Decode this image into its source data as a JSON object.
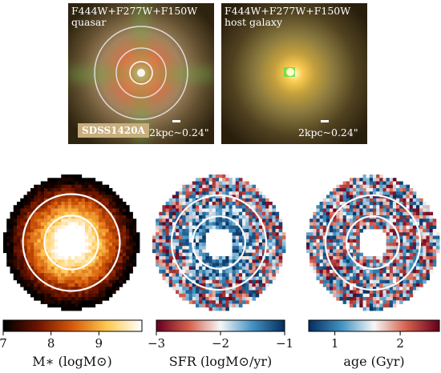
{
  "top_panels": [
    {
      "id": "quasar",
      "line1": "F444W+F277W+F150W",
      "line2": "quasar",
      "scale_label": "2kpc~0.24\"",
      "badge": "SDSS1420A"
    },
    {
      "id": "host",
      "line1": "F444W+F277W+F150W",
      "line2": "host galaxy",
      "scale_label": "2kpc~0.24\""
    }
  ],
  "maps": [
    {
      "id": "mass",
      "colormap": "afmhot",
      "cbar_label": "M∗ (logM⊙)",
      "ticks": [
        "7",
        "8",
        "9"
      ],
      "tick_values": [
        7,
        8,
        9
      ],
      "range": [
        7,
        9.9
      ]
    },
    {
      "id": "sfr",
      "colormap": "RdBu",
      "cbar_label": "SFR (logM⊙/yr)",
      "ticks": [
        "−3",
        "−2",
        "−1"
      ],
      "tick_values": [
        -3,
        -2,
        -1
      ],
      "range": [
        -3,
        -1
      ]
    },
    {
      "id": "age",
      "colormap": "RdBu_r",
      "cbar_label": "age (Gyr)",
      "ticks": [
        "1",
        "2"
      ],
      "tick_values": [
        1,
        2
      ],
      "range": [
        0.6,
        2.6
      ]
    }
  ],
  "colors": {
    "ring": "#ffffff",
    "ring_faint": "#cccccc",
    "badge_bg": "#c7ae7c"
  }
}
